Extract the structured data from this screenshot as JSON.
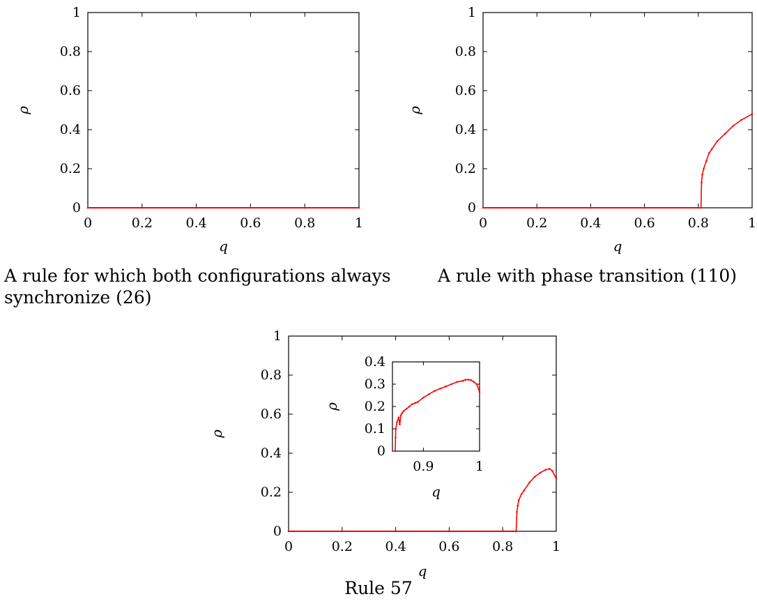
{
  "captions": {
    "a": "A rule for which both configurations always synchronize (26)",
    "b": "A rule with phase transition (110)",
    "c": "Rule 57"
  },
  "chart_data": [
    {
      "type": "scatter",
      "title": "",
      "xlabel": "q",
      "ylabel": "ρ",
      "xlim": [
        0,
        1
      ],
      "ylim": [
        0,
        1
      ],
      "xticks": [
        0,
        0.2,
        0.4,
        0.6,
        0.8,
        1
      ],
      "yticks": [
        0,
        0.2,
        0.4,
        0.6,
        0.8,
        1
      ],
      "grid": false,
      "series": [
        {
          "color": "#ff0000",
          "x": [
            0,
            0.2,
            0.4,
            0.6,
            0.8,
            1.0
          ],
          "y": [
            0,
            0,
            0,
            0,
            0,
            0
          ]
        }
      ]
    },
    {
      "type": "scatter",
      "title": "",
      "xlabel": "q",
      "ylabel": "ρ",
      "xlim": [
        0,
        1
      ],
      "ylim": [
        0,
        1
      ],
      "xticks": [
        0,
        0.2,
        0.4,
        0.6,
        0.8,
        1
      ],
      "yticks": [
        0,
        0.2,
        0.4,
        0.6,
        0.8,
        1
      ],
      "grid": false,
      "series": [
        {
          "color": "#ff0000",
          "x": [
            0,
            0.2,
            0.4,
            0.6,
            0.81,
            0.812,
            0.815,
            0.82,
            0.83,
            0.84,
            0.85,
            0.87,
            0.9,
            0.93,
            0.96,
            1.0
          ],
          "y": [
            0,
            0,
            0,
            0,
            0,
            0.13,
            0.17,
            0.2,
            0.24,
            0.28,
            0.3,
            0.34,
            0.38,
            0.42,
            0.45,
            0.48
          ]
        }
      ]
    },
    {
      "type": "scatter",
      "title": "",
      "xlabel": "q",
      "ylabel": "ρ",
      "xlim": [
        0,
        1
      ],
      "ylim": [
        0,
        1
      ],
      "xticks": [
        0,
        0.2,
        0.4,
        0.6,
        0.8,
        1
      ],
      "yticks": [
        0,
        0.2,
        0.4,
        0.6,
        0.8,
        1
      ],
      "grid": false,
      "series": [
        {
          "color": "#ff0000",
          "x": [
            0,
            0.2,
            0.4,
            0.6,
            0.85,
            0.853,
            0.856,
            0.86,
            0.87,
            0.88,
            0.9,
            0.92,
            0.94,
            0.96,
            0.975,
            0.985,
            1.0
          ],
          "y": [
            0,
            0,
            0,
            0,
            0,
            0.1,
            0.13,
            0.16,
            0.19,
            0.21,
            0.25,
            0.28,
            0.3,
            0.315,
            0.32,
            0.31,
            0.27
          ]
        }
      ],
      "inset": {
        "xlabel": "q",
        "ylabel": "ρ",
        "xlim": [
          0.845,
          1
        ],
        "ylim": [
          0,
          0.4
        ],
        "xticks": [
          0.9,
          1
        ],
        "yticks": [
          0,
          0.1,
          0.2,
          0.3,
          0.4
        ],
        "series": [
          {
            "color": "#ff0000",
            "x": [
              0.85,
              0.8505,
              0.851,
              0.853,
              0.856,
              0.858,
              0.86,
              0.862,
              0.865,
              0.87,
              0.875,
              0.88,
              0.885,
              0.89,
              0.9,
              0.91,
              0.92,
              0.93,
              0.94,
              0.95,
              0.96,
              0.97,
              0.975,
              0.98,
              0.985,
              0.99,
              0.995,
              1.0
            ],
            "y": [
              0,
              0.06,
              0.1,
              0.13,
              0.15,
              0.12,
              0.16,
              0.17,
              0.18,
              0.19,
              0.2,
              0.21,
              0.215,
              0.22,
              0.24,
              0.255,
              0.27,
              0.28,
              0.29,
              0.3,
              0.31,
              0.315,
              0.32,
              0.32,
              0.318,
              0.31,
              0.3,
              0.265
            ]
          }
        ]
      }
    }
  ]
}
